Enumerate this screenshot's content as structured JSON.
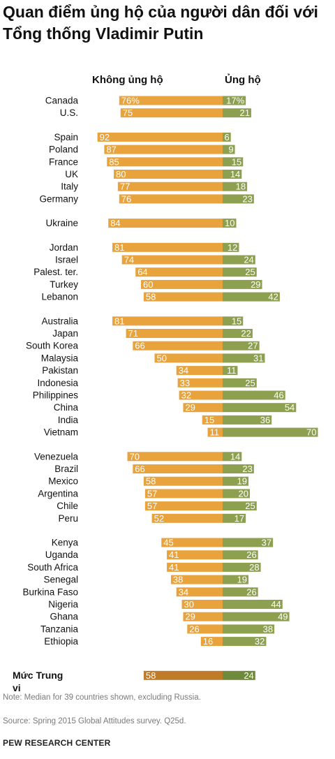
{
  "title": "Quan điểm ủng hộ của người dân đối với Tổng thống Vladimir Putin",
  "headers": {
    "left": "Không ủng hộ",
    "right": "Ủng hộ"
  },
  "note": "Note: Median for 39 countries shown, excluding Russia.",
  "source": "Source: Spring 2015 Global Attitudes survey. Q25d.",
  "org": "PEW RESEARCH CENTER",
  "colors": {
    "oppose": "#e8a33c",
    "support": "#8ca050",
    "median_oppose": "#c07b28",
    "median_support": "#6f8a3a",
    "label_inside": "#ffffff",
    "label_outside": "#333333"
  },
  "chart_data": {
    "type": "bar",
    "orientation": "horizontal-diverging",
    "series": [
      {
        "name": "Không ủng hộ",
        "key": "oppose"
      },
      {
        "name": "Ủng hộ",
        "key": "support"
      }
    ],
    "groups": [
      {
        "rows": [
          {
            "label": "Canada",
            "oppose": 76,
            "support": 17,
            "oppose_text": "76%",
            "support_text": "17%"
          },
          {
            "label": "U.S.",
            "oppose": 75,
            "support": 21
          }
        ]
      },
      {
        "rows": [
          {
            "label": "Spain",
            "oppose": 92,
            "support": 6
          },
          {
            "label": "Poland",
            "oppose": 87,
            "support": 9
          },
          {
            "label": "France",
            "oppose": 85,
            "support": 15
          },
          {
            "label": "UK",
            "oppose": 80,
            "support": 14
          },
          {
            "label": "Italy",
            "oppose": 77,
            "support": 18
          },
          {
            "label": "Germany",
            "oppose": 76,
            "support": 23
          }
        ]
      },
      {
        "rows": [
          {
            "label": "Ukraine",
            "oppose": 84,
            "support": 10
          }
        ]
      },
      {
        "rows": [
          {
            "label": "Jordan",
            "oppose": 81,
            "support": 12
          },
          {
            "label": "Israel",
            "oppose": 74,
            "support": 24
          },
          {
            "label": "Palest. ter.",
            "oppose": 64,
            "support": 25
          },
          {
            "label": "Turkey",
            "oppose": 60,
            "support": 29
          },
          {
            "label": "Lebanon",
            "oppose": 58,
            "support": 42
          }
        ]
      },
      {
        "rows": [
          {
            "label": "Australia",
            "oppose": 81,
            "support": 15
          },
          {
            "label": "Japan",
            "oppose": 71,
            "support": 22
          },
          {
            "label": "South Korea",
            "oppose": 66,
            "support": 27
          },
          {
            "label": "Malaysia",
            "oppose": 50,
            "support": 31
          },
          {
            "label": "Pakistan",
            "oppose": 34,
            "support": 11
          },
          {
            "label": "Indonesia",
            "oppose": 33,
            "support": 25
          },
          {
            "label": "Philippines",
            "oppose": 32,
            "support": 46
          },
          {
            "label": "China",
            "oppose": 29,
            "support": 54
          },
          {
            "label": "India",
            "oppose": 15,
            "support": 36
          },
          {
            "label": "Vietnam",
            "oppose": 11,
            "support": 70
          }
        ]
      },
      {
        "rows": [
          {
            "label": "Venezuela",
            "oppose": 70,
            "support": 14
          },
          {
            "label": "Brazil",
            "oppose": 66,
            "support": 23
          },
          {
            "label": "Mexico",
            "oppose": 58,
            "support": 19
          },
          {
            "label": "Argentina",
            "oppose": 57,
            "support": 20
          },
          {
            "label": "Chile",
            "oppose": 57,
            "support": 25
          },
          {
            "label": "Peru",
            "oppose": 52,
            "support": 17
          }
        ]
      },
      {
        "rows": [
          {
            "label": "Kenya",
            "oppose": 45,
            "support": 37
          },
          {
            "label": "Uganda",
            "oppose": 41,
            "support": 26
          },
          {
            "label": "South Africa",
            "oppose": 41,
            "support": 28
          },
          {
            "label": "Senegal",
            "oppose": 38,
            "support": 19
          },
          {
            "label": "Burkina Faso",
            "oppose": 34,
            "support": 26
          },
          {
            "label": "Nigeria",
            "oppose": 30,
            "support": 44
          },
          {
            "label": "Ghana",
            "oppose": 29,
            "support": 49
          },
          {
            "label": "Tanzania",
            "oppose": 26,
            "support": 38
          },
          {
            "label": "Ethiopia",
            "oppose": 16,
            "support": 32
          }
        ]
      }
    ],
    "median": {
      "label_lines": [
        "Mức Trung",
        "vị"
      ],
      "oppose": 58,
      "support": 24
    }
  }
}
